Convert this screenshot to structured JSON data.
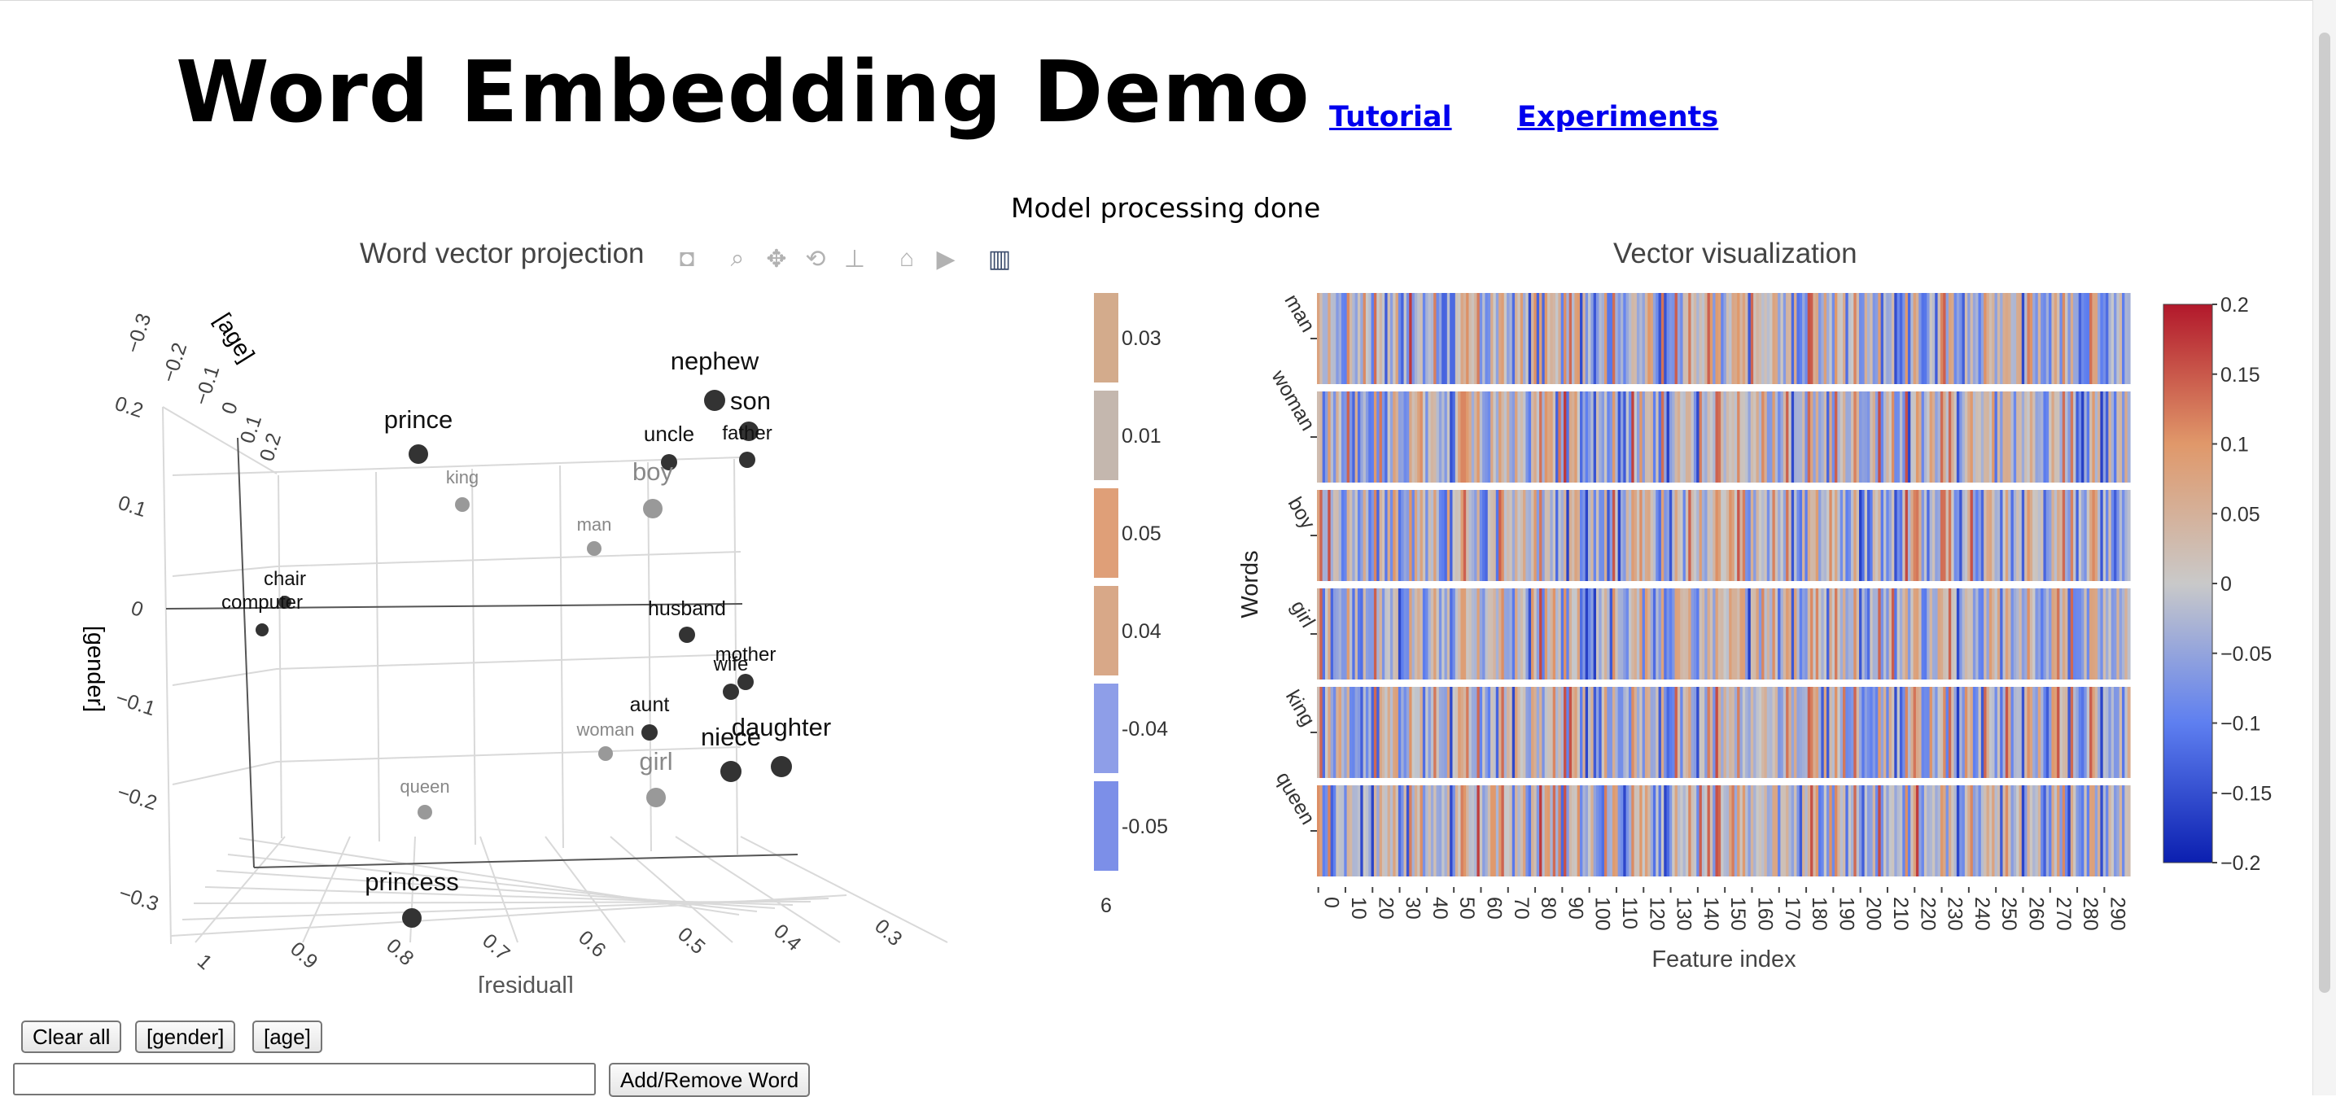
{
  "header": {
    "title": "Word Embedding Demo",
    "links": [
      "Tutorial",
      "Experiments"
    ]
  },
  "status": "Model processing done",
  "projection": {
    "title": "Word vector projection",
    "axes": {
      "x": "[residual]",
      "y": "[gender]",
      "z": "[age]"
    },
    "x_ticks": [
      "1",
      "0.9",
      "0.8",
      "0.7",
      "0.6",
      "0.5",
      "0.4",
      "0.3"
    ],
    "y_ticks": [
      "0.2",
      "0.1",
      "0",
      "−0.1",
      "−0.2",
      "−0.3"
    ],
    "z_ticks": [
      "−0.3",
      "−0.2",
      "−0.1",
      "0",
      "0.1",
      "0.2"
    ],
    "toolbar_icons": [
      "camera-icon",
      "zoom-icon",
      "pan-icon",
      "orbit-icon",
      "turntable-icon",
      "home-icon",
      "camera-view-icon",
      "bar-chart-icon"
    ],
    "colors": {
      "highlight": "#333333",
      "base": "#999999"
    },
    "points": [
      {
        "word": "nephew",
        "group": "highlight"
      },
      {
        "word": "son",
        "group": "highlight"
      },
      {
        "word": "prince",
        "group": "highlight"
      },
      {
        "word": "uncle",
        "group": "highlight"
      },
      {
        "word": "father",
        "group": "highlight"
      },
      {
        "word": "king",
        "group": "base"
      },
      {
        "word": "boy",
        "group": "base"
      },
      {
        "word": "man",
        "group": "base"
      },
      {
        "word": "chair",
        "group": "highlight"
      },
      {
        "word": "computer",
        "group": "highlight"
      },
      {
        "word": "husband",
        "group": "highlight"
      },
      {
        "word": "mother",
        "group": "highlight"
      },
      {
        "word": "wife",
        "group": "highlight"
      },
      {
        "word": "aunt",
        "group": "highlight"
      },
      {
        "word": "woman",
        "group": "base"
      },
      {
        "word": "daughter",
        "group": "highlight"
      },
      {
        "word": "niece",
        "group": "highlight"
      },
      {
        "word": "girl",
        "group": "base"
      },
      {
        "word": "queen",
        "group": "base"
      },
      {
        "word": "princess",
        "group": "highlight"
      }
    ]
  },
  "swatches": {
    "items": [
      {
        "value": "0.03",
        "color": "#d3ab8c"
      },
      {
        "value": "0.01",
        "color": "#c4b7ae"
      },
      {
        "value": "0.05",
        "color": "#df9f78"
      },
      {
        "value": "0.04",
        "color": "#d8a888"
      },
      {
        "value": "-0.04",
        "color": "#8e9ee8"
      },
      {
        "value": "-0.05",
        "color": "#7c8fe8"
      }
    ],
    "footer": "6"
  },
  "heatmap": {
    "title": "Vector visualization",
    "ylabel": "Words",
    "xlabel": "Feature index",
    "words": [
      "man",
      "woman",
      "boy",
      "girl",
      "king",
      "queen"
    ],
    "x_ticks": [
      "0",
      "10",
      "20",
      "30",
      "40",
      "50",
      "60",
      "70",
      "80",
      "90",
      "100",
      "110",
      "120",
      "130",
      "140",
      "150",
      "160",
      "170",
      "180",
      "190",
      "200",
      "210",
      "220",
      "230",
      "240",
      "250",
      "260",
      "270",
      "280",
      "290"
    ],
    "colorbar_ticks": [
      "0.2",
      "0.15",
      "0.1",
      "0.05",
      "0",
      "−0.05",
      "−0.1",
      "−0.15",
      "−0.2"
    ],
    "colorscale": [
      "#0b1fb0",
      "#5e7ff0",
      "#c9c9c9",
      "#e0986a",
      "#b2182b"
    ]
  },
  "controls": {
    "buttons": [
      "Clear all",
      "[gender]",
      "[age]"
    ],
    "input_value": "",
    "add_button": "Add/Remove Word"
  }
}
